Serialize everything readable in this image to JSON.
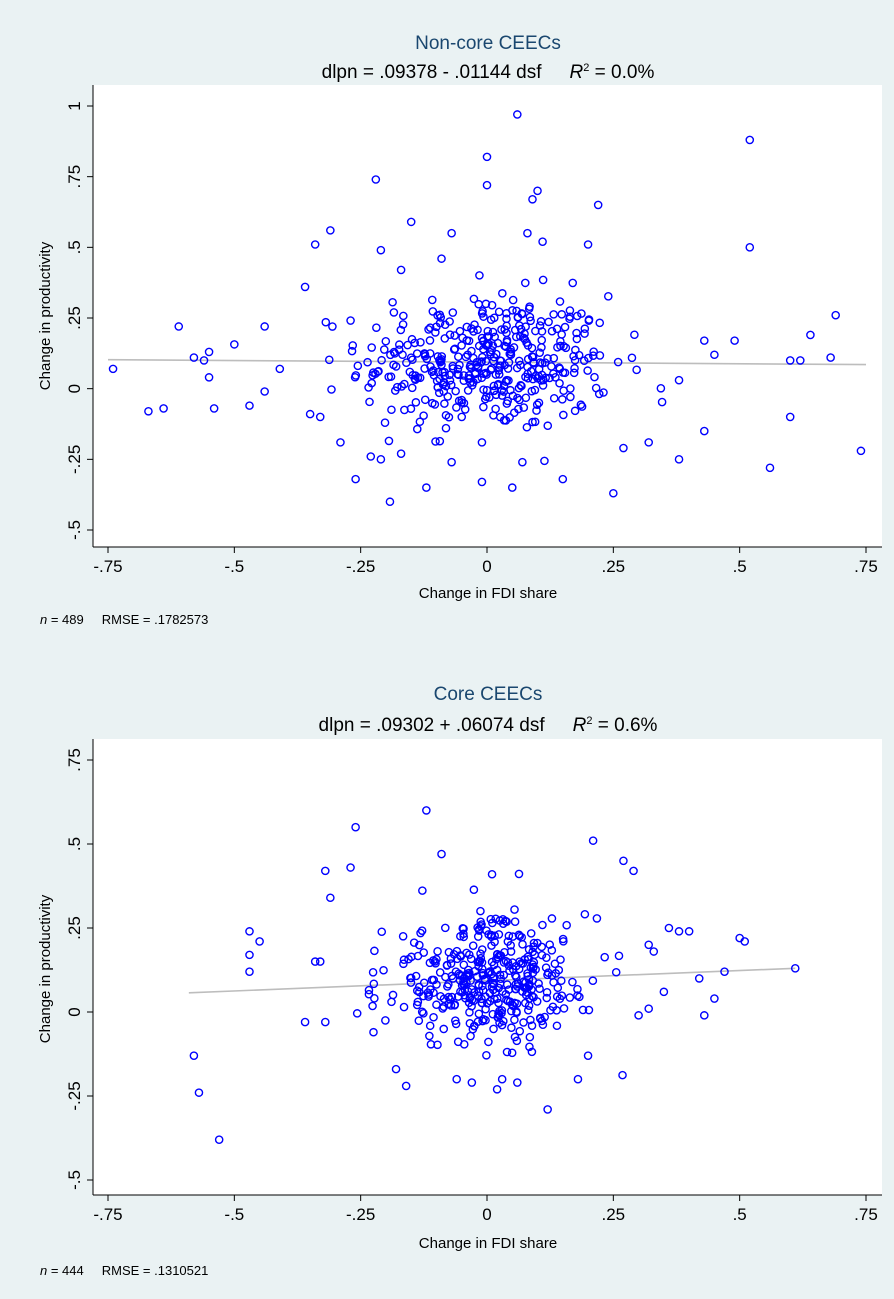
{
  "chart_data": [
    {
      "type": "scatter",
      "title": "Non-core CEECs",
      "subtitle": {
        "equation": "dlpn = .09378 - .01144 dsf",
        "r2_symbol": "R",
        "r2_sup": "2",
        "r2_value": " = 0.0%"
      },
      "xlabel": "Change in FDI share",
      "ylabel": "Change in productivity",
      "xlim": [
        -0.77,
        0.77
      ],
      "ylim": [
        -0.55,
        1.05
      ],
      "x_ticks": [
        {
          "v": -0.75,
          "label": "-.75"
        },
        {
          "v": -0.5,
          "label": "-.5"
        },
        {
          "v": -0.25,
          "label": "-.25"
        },
        {
          "v": 0,
          "label": "0"
        },
        {
          "v": 0.25,
          "label": ".25"
        },
        {
          "v": 0.5,
          "label": ".5"
        },
        {
          "v": 0.75,
          "label": ".75"
        }
      ],
      "y_ticks": [
        {
          "v": -0.5,
          "label": "-.5"
        },
        {
          "v": -0.25,
          "label": "-.25"
        },
        {
          "v": 0,
          "label": "0"
        },
        {
          "v": 0.25,
          "label": ".25"
        },
        {
          "v": 0.5,
          "label": ".5"
        },
        {
          "v": 0.75,
          "label": ".75"
        },
        {
          "v": 1,
          "label": "1"
        }
      ],
      "fit": {
        "intercept": 0.09378,
        "slope": -0.01144,
        "x_range": [
          -0.75,
          0.75
        ]
      },
      "note": {
        "n_label": "n",
        "n_value": " = 489",
        "rmse": "RMSE =  .1782573"
      },
      "n_points": 489,
      "x_center": 0.0,
      "x_sd": 0.2,
      "y_sd": 0.178,
      "seed": 12345,
      "points": [
        [
          -0.74,
          0.07
        ],
        [
          -0.67,
          -0.08
        ],
        [
          -0.64,
          -0.07
        ],
        [
          -0.61,
          0.22
        ],
        [
          -0.58,
          0.11
        ],
        [
          -0.56,
          0.1
        ],
        [
          -0.55,
          0.13
        ],
        [
          -0.55,
          0.04
        ],
        [
          -0.54,
          -0.07
        ],
        [
          -0.47,
          -0.06
        ],
        [
          -0.44,
          0.22
        ],
        [
          -0.44,
          -0.01
        ],
        [
          -0.41,
          0.07
        ],
        [
          -0.36,
          0.36
        ],
        [
          -0.34,
          0.51
        ],
        [
          -0.31,
          0.56
        ],
        [
          -0.22,
          0.74
        ],
        [
          -0.21,
          0.49
        ],
        [
          -0.17,
          0.42
        ],
        [
          -0.15,
          0.59
        ],
        [
          -0.09,
          0.46
        ],
        [
          -0.07,
          0.55
        ],
        [
          0.0,
          0.72
        ],
        [
          0.0,
          0.82
        ],
        [
          0.06,
          0.97
        ],
        [
          0.08,
          0.55
        ],
        [
          0.09,
          0.67
        ],
        [
          0.1,
          0.7
        ],
        [
          0.11,
          0.52
        ],
        [
          0.2,
          0.51
        ],
        [
          0.22,
          0.65
        ],
        [
          0.52,
          0.88
        ],
        [
          0.52,
          0.5
        ],
        [
          -0.35,
          -0.09
        ],
        [
          -0.33,
          -0.1
        ],
        [
          -0.29,
          -0.19
        ],
        [
          -0.26,
          -0.32
        ],
        [
          -0.23,
          -0.24
        ],
        [
          -0.21,
          -0.25
        ],
        [
          -0.17,
          -0.23
        ],
        [
          -0.12,
          -0.35
        ],
        [
          -0.07,
          -0.26
        ],
        [
          -0.05,
          -0.1
        ],
        [
          -0.01,
          -0.19
        ],
        [
          -0.01,
          -0.33
        ],
        [
          0.05,
          -0.35
        ],
        [
          0.07,
          -0.26
        ],
        [
          0.15,
          -0.32
        ],
        [
          0.25,
          -0.37
        ],
        [
          0.27,
          -0.21
        ],
        [
          0.32,
          -0.19
        ],
        [
          0.38,
          -0.25
        ],
        [
          0.43,
          -0.15
        ],
        [
          0.56,
          -0.28
        ],
        [
          0.6,
          -0.1
        ],
        [
          0.6,
          0.1
        ],
        [
          0.62,
          0.1
        ],
        [
          0.64,
          0.19
        ],
        [
          0.68,
          0.11
        ],
        [
          0.69,
          0.26
        ],
        [
          0.74,
          -0.22
        ],
        [
          0.49,
          0.17
        ],
        [
          0.45,
          0.12
        ],
        [
          0.43,
          0.17
        ],
        [
          0.38,
          0.03
        ]
      ]
    },
    {
      "type": "scatter",
      "title": "Core CEECs",
      "subtitle": {
        "equation": "dlpn = .09302 + .06074 dsf",
        "r2_symbol": "R",
        "r2_sup": "2",
        "r2_value": " = 0.6%"
      },
      "xlabel": "Change in FDI share",
      "ylabel": "Change in productivity",
      "xlim": [
        -0.77,
        0.77
      ],
      "ylim": [
        -0.55,
        0.8
      ],
      "x_ticks": [
        {
          "v": -0.75,
          "label": "-.75"
        },
        {
          "v": -0.5,
          "label": "-.5"
        },
        {
          "v": -0.25,
          "label": "-.25"
        },
        {
          "v": 0,
          "label": "0"
        },
        {
          "v": 0.25,
          "label": ".25"
        },
        {
          "v": 0.5,
          "label": ".5"
        },
        {
          "v": 0.75,
          "label": ".75"
        }
      ],
      "y_ticks": [
        {
          "v": -0.5,
          "label": "-.5"
        },
        {
          "v": -0.25,
          "label": "-.25"
        },
        {
          "v": 0,
          "label": "0"
        },
        {
          "v": 0.25,
          "label": ".25"
        },
        {
          "v": 0.5,
          "label": ".5"
        },
        {
          "v": 0.75,
          "label": ".75"
        }
      ],
      "fit": {
        "intercept": 0.09302,
        "slope": 0.06074,
        "x_range": [
          -0.59,
          0.61
        ]
      },
      "note": {
        "n_label": "n",
        "n_value": " = 444",
        "rmse": "RMSE =  .1310521"
      },
      "n_points": 444,
      "x_center": 0.0,
      "x_sd": 0.16,
      "y_sd": 0.131,
      "seed": 67890,
      "points": [
        [
          -0.58,
          -0.13
        ],
        [
          -0.57,
          -0.24
        ],
        [
          -0.53,
          -0.38
        ],
        [
          -0.47,
          0.24
        ],
        [
          -0.47,
          0.17
        ],
        [
          -0.47,
          0.12
        ],
        [
          -0.45,
          0.21
        ],
        [
          -0.36,
          -0.03
        ],
        [
          -0.34,
          0.15
        ],
        [
          -0.33,
          0.15
        ],
        [
          -0.32,
          0.42
        ],
        [
          -0.32,
          -0.03
        ],
        [
          -0.31,
          0.34
        ],
        [
          -0.27,
          0.43
        ],
        [
          -0.26,
          0.55
        ],
        [
          -0.18,
          -0.17
        ],
        [
          -0.16,
          -0.22
        ],
        [
          -0.12,
          0.6
        ],
        [
          -0.09,
          0.47
        ],
        [
          -0.06,
          -0.2
        ],
        [
          -0.03,
          -0.21
        ],
        [
          0.01,
          0.41
        ],
        [
          0.02,
          -0.23
        ],
        [
          0.03,
          -0.2
        ],
        [
          0.06,
          -0.21
        ],
        [
          0.12,
          -0.29
        ],
        [
          0.18,
          -0.2
        ],
        [
          0.2,
          -0.13
        ],
        [
          0.21,
          0.51
        ],
        [
          0.27,
          0.45
        ],
        [
          0.29,
          0.42
        ],
        [
          0.3,
          -0.01
        ],
        [
          0.32,
          0.2
        ],
        [
          0.33,
          0.18
        ],
        [
          0.36,
          0.25
        ],
        [
          0.38,
          0.24
        ],
        [
          0.4,
          0.24
        ],
        [
          0.42,
          0.1
        ],
        [
          0.43,
          -0.01
        ],
        [
          0.45,
          0.04
        ],
        [
          0.47,
          0.12
        ],
        [
          0.5,
          0.22
        ],
        [
          0.51,
          0.21
        ],
        [
          0.61,
          0.13
        ],
        [
          0.35,
          0.06
        ],
        [
          0.32,
          0.01
        ]
      ]
    }
  ]
}
